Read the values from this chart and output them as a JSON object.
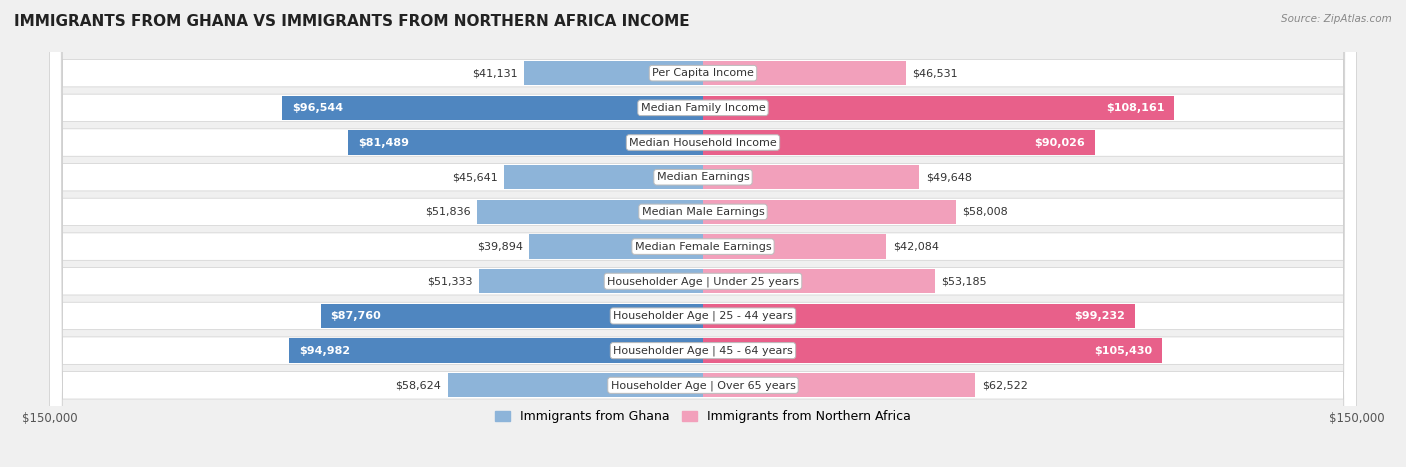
{
  "title": "IMMIGRANTS FROM GHANA VS IMMIGRANTS FROM NORTHERN AFRICA INCOME",
  "source": "Source: ZipAtlas.com",
  "categories": [
    "Per Capita Income",
    "Median Family Income",
    "Median Household Income",
    "Median Earnings",
    "Median Male Earnings",
    "Median Female Earnings",
    "Householder Age | Under 25 years",
    "Householder Age | 25 - 44 years",
    "Householder Age | 45 - 64 years",
    "Householder Age | Over 65 years"
  ],
  "ghana_values": [
    41131,
    96544,
    81489,
    45641,
    51836,
    39894,
    51333,
    87760,
    94982,
    58624
  ],
  "northern_africa_values": [
    46531,
    108161,
    90026,
    49648,
    58008,
    42084,
    53185,
    99232,
    105430,
    62522
  ],
  "ghana_color": "#8db4d9",
  "ghana_color_bold": "#4f86c0",
  "northern_africa_color": "#f2a0bb",
  "northern_africa_color_bold": "#e8608a",
  "ghana_label": "Immigrants from Ghana",
  "northern_africa_label": "Immigrants from Northern Africa",
  "max_value": 150000,
  "background_color": "#f0f0f0",
  "row_bg_color": "#f9f9f9",
  "title_fontsize": 11,
  "source_fontsize": 7.5,
  "axis_label_fontsize": 8.5,
  "bar_label_fontsize": 8,
  "category_fontsize": 8
}
